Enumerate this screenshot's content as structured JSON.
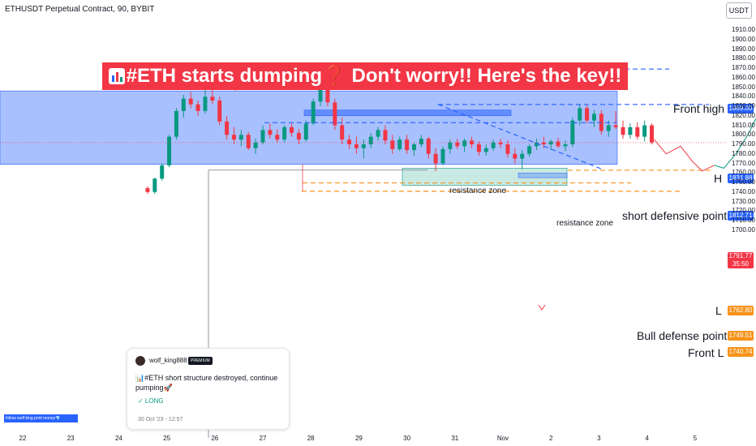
{
  "header": {
    "symbol": "ETHUSDT Perpetual Contract, 90, BYBIT",
    "currency": "USDT"
  },
  "title": "#ETH starts dumping❓ Don't worry!! Here's the key!!",
  "annotations": {
    "front_high": "Front high",
    "h": "H",
    "short_defensive": "short defensive point",
    "l": "L",
    "bull_defense": "Bull defense point",
    "front_l": "Front L",
    "resistance_zone_1": "resistance zone",
    "resistance_zone_2": "resistance zone"
  },
  "price_tags": [
    {
      "value": "1869.00",
      "color": "#2962ff"
    },
    {
      "value": "1831.88",
      "color": "#2962ff"
    },
    {
      "value": "1812.71",
      "color": "#2962ff"
    },
    {
      "value": "1762.80",
      "color": "#f7931a"
    },
    {
      "value": "1749.51",
      "color": "#f7931a"
    },
    {
      "value": "1740.74",
      "color": "#f7931a"
    }
  ],
  "last_price": {
    "value": "1791.77",
    "countdown": "35:50",
    "color": "#f23645"
  },
  "post_card": {
    "user": "wolf_king888",
    "badge": "PREMIUM",
    "text": "📊#ETH short structure destroyed, continue pumping🚀",
    "direction": "✓ LONG",
    "date": "30 Oct '23 - 12:57"
  },
  "promo_text": "follow wolf king print money💎",
  "colors": {
    "up": "#089981",
    "down": "#f23645",
    "blue_line": "#2962ff",
    "orange_line": "#f7931a",
    "zone_blue": "rgba(41,98,255,0.40)",
    "zone_green": "rgba(8,153,129,0.22)"
  },
  "chart_data": {
    "type": "candlestick",
    "symbol": "ETHUSDT Perpetual Contract",
    "interval": "90",
    "exchange": "BYBIT",
    "y_ticks": [
      "1910.00",
      "1900.00",
      "1890.00",
      "1880.00",
      "1870.00",
      "1860.00",
      "1850.00",
      "1840.00",
      "1830.00",
      "1820.00",
      "1810.00",
      "1800.00",
      "1790.00",
      "1780.00",
      "1770.00",
      "1760.00",
      "1750.00",
      "1740.00",
      "1730.00",
      "1720.00",
      "1710.00",
      "1700.00"
    ],
    "x_ticks": [
      "22",
      "23",
      "24",
      "25",
      "26",
      "27",
      "28",
      "29",
      "30",
      "31",
      "Nov",
      "2",
      "3",
      "4",
      "5"
    ],
    "ylim": [
      1700,
      1914
    ],
    "levels": [
      {
        "name": "Front high",
        "price": 1869.0
      },
      {
        "name": "H",
        "price": 1831.88
      },
      {
        "name": "short defensive point",
        "price": 1812.71
      },
      {
        "name": "L",
        "price": 1762.8
      },
      {
        "name": "Bull defense point",
        "price": 1749.51
      },
      {
        "name": "Front L",
        "price": 1740.74
      }
    ],
    "candles": [
      [
        24.6,
        1744,
        1746,
        1738,
        1740
      ],
      [
        24.75,
        1740,
        1755,
        1738,
        1754
      ],
      [
        24.9,
        1754,
        1770,
        1752,
        1768
      ],
      [
        25.05,
        1768,
        1800,
        1766,
        1798
      ],
      [
        25.2,
        1798,
        1828,
        1795,
        1825
      ],
      [
        25.35,
        1825,
        1842,
        1818,
        1838
      ],
      [
        25.5,
        1838,
        1845,
        1828,
        1832
      ],
      [
        25.65,
        1832,
        1836,
        1820,
        1825
      ],
      [
        25.8,
        1825,
        1848,
        1822,
        1840
      ],
      [
        25.95,
        1840,
        1852,
        1832,
        1836
      ],
      [
        26.1,
        1836,
        1840,
        1810,
        1814
      ],
      [
        26.25,
        1814,
        1820,
        1795,
        1800
      ],
      [
        26.4,
        1800,
        1808,
        1790,
        1795
      ],
      [
        26.55,
        1795,
        1805,
        1788,
        1800
      ],
      [
        26.7,
        1800,
        1803,
        1784,
        1786
      ],
      [
        26.85,
        1786,
        1796,
        1780,
        1792
      ],
      [
        27.0,
        1792,
        1810,
        1790,
        1805
      ],
      [
        27.15,
        1805,
        1812,
        1796,
        1800
      ],
      [
        27.3,
        1800,
        1806,
        1792,
        1795
      ],
      [
        27.45,
        1795,
        1810,
        1792,
        1808
      ],
      [
        27.6,
        1808,
        1812,
        1798,
        1802
      ],
      [
        27.75,
        1802,
        1806,
        1790,
        1795
      ],
      [
        27.9,
        1795,
        1815,
        1793,
        1812
      ],
      [
        28.05,
        1812,
        1838,
        1810,
        1835
      ],
      [
        28.2,
        1835,
        1850,
        1830,
        1848
      ],
      [
        28.35,
        1848,
        1855,
        1830,
        1834
      ],
      [
        28.5,
        1834,
        1838,
        1805,
        1810
      ],
      [
        28.65,
        1810,
        1818,
        1790,
        1795
      ],
      [
        28.8,
        1795,
        1800,
        1785,
        1790
      ],
      [
        28.95,
        1790,
        1798,
        1780,
        1786
      ],
      [
        29.1,
        1786,
        1795,
        1775,
        1790
      ],
      [
        29.25,
        1790,
        1802,
        1786,
        1798
      ],
      [
        29.4,
        1798,
        1808,
        1794,
        1805
      ],
      [
        29.55,
        1805,
        1810,
        1790,
        1794
      ],
      [
        29.7,
        1794,
        1800,
        1780,
        1785
      ],
      [
        29.85,
        1785,
        1798,
        1783,
        1795
      ],
      [
        30.0,
        1795,
        1800,
        1780,
        1784
      ],
      [
        30.15,
        1784,
        1792,
        1778,
        1790
      ],
      [
        30.3,
        1790,
        1800,
        1787,
        1796
      ],
      [
        30.45,
        1796,
        1798,
        1775,
        1780
      ],
      [
        30.6,
        1780,
        1786,
        1762,
        1770
      ],
      [
        30.75,
        1770,
        1788,
        1768,
        1785
      ],
      [
        30.9,
        1785,
        1795,
        1780,
        1792
      ],
      [
        31.05,
        1792,
        1796,
        1785,
        1788
      ],
      [
        31.2,
        1788,
        1796,
        1782,
        1794
      ],
      [
        31.35,
        1794,
        1798,
        1786,
        1790
      ],
      [
        31.5,
        1790,
        1793,
        1778,
        1782
      ],
      [
        31.65,
        1782,
        1790,
        1778,
        1786
      ],
      [
        31.8,
        1786,
        1795,
        1783,
        1792
      ],
      [
        31.95,
        1792,
        1796,
        1786,
        1790
      ],
      [
        32.1,
        1790,
        1794,
        1776,
        1780
      ],
      [
        32.25,
        1780,
        1786,
        1770,
        1775
      ],
      [
        32.4,
        1775,
        1784,
        1764,
        1780
      ],
      [
        32.55,
        1780,
        1790,
        1777,
        1788
      ],
      [
        32.7,
        1788,
        1796,
        1784,
        1792
      ],
      [
        32.85,
        1792,
        1798,
        1786,
        1790
      ],
      [
        33.0,
        1790,
        1795,
        1784,
        1793
      ],
      [
        33.15,
        1793,
        1797,
        1786,
        1788
      ],
      [
        33.3,
        1788,
        1794,
        1783,
        1790
      ],
      [
        33.45,
        1790,
        1818,
        1787,
        1815
      ],
      [
        33.6,
        1815,
        1832,
        1810,
        1828
      ],
      [
        33.75,
        1828,
        1831,
        1812,
        1815
      ],
      [
        33.9,
        1815,
        1826,
        1808,
        1822
      ],
      [
        34.05,
        1822,
        1826,
        1800,
        1804
      ],
      [
        34.2,
        1804,
        1815,
        1798,
        1810
      ],
      [
        34.35,
        1810,
        1825,
        1806,
        1808
      ],
      [
        34.5,
        1808,
        1815,
        1796,
        1800
      ],
      [
        34.65,
        1800,
        1812,
        1796,
        1808
      ],
      [
        34.8,
        1808,
        1813,
        1795,
        1798
      ],
      [
        34.95,
        1798,
        1815,
        1793,
        1810
      ],
      [
        35.1,
        1810,
        1812,
        1790,
        1792
      ]
    ],
    "projection_path": [
      [
        35.15,
        1795
      ],
      [
        35.4,
        1780
      ],
      [
        35.7,
        1788
      ],
      [
        35.95,
        1772
      ],
      [
        36.15,
        1762
      ],
      [
        36.4,
        1768
      ],
      [
        36.6,
        1765
      ],
      [
        36.85,
        1780
      ],
      [
        37.1,
        1800
      ],
      [
        37.4,
        1830
      ],
      [
        37.7,
        1875
      ],
      [
        37.9,
        1900
      ]
    ]
  }
}
